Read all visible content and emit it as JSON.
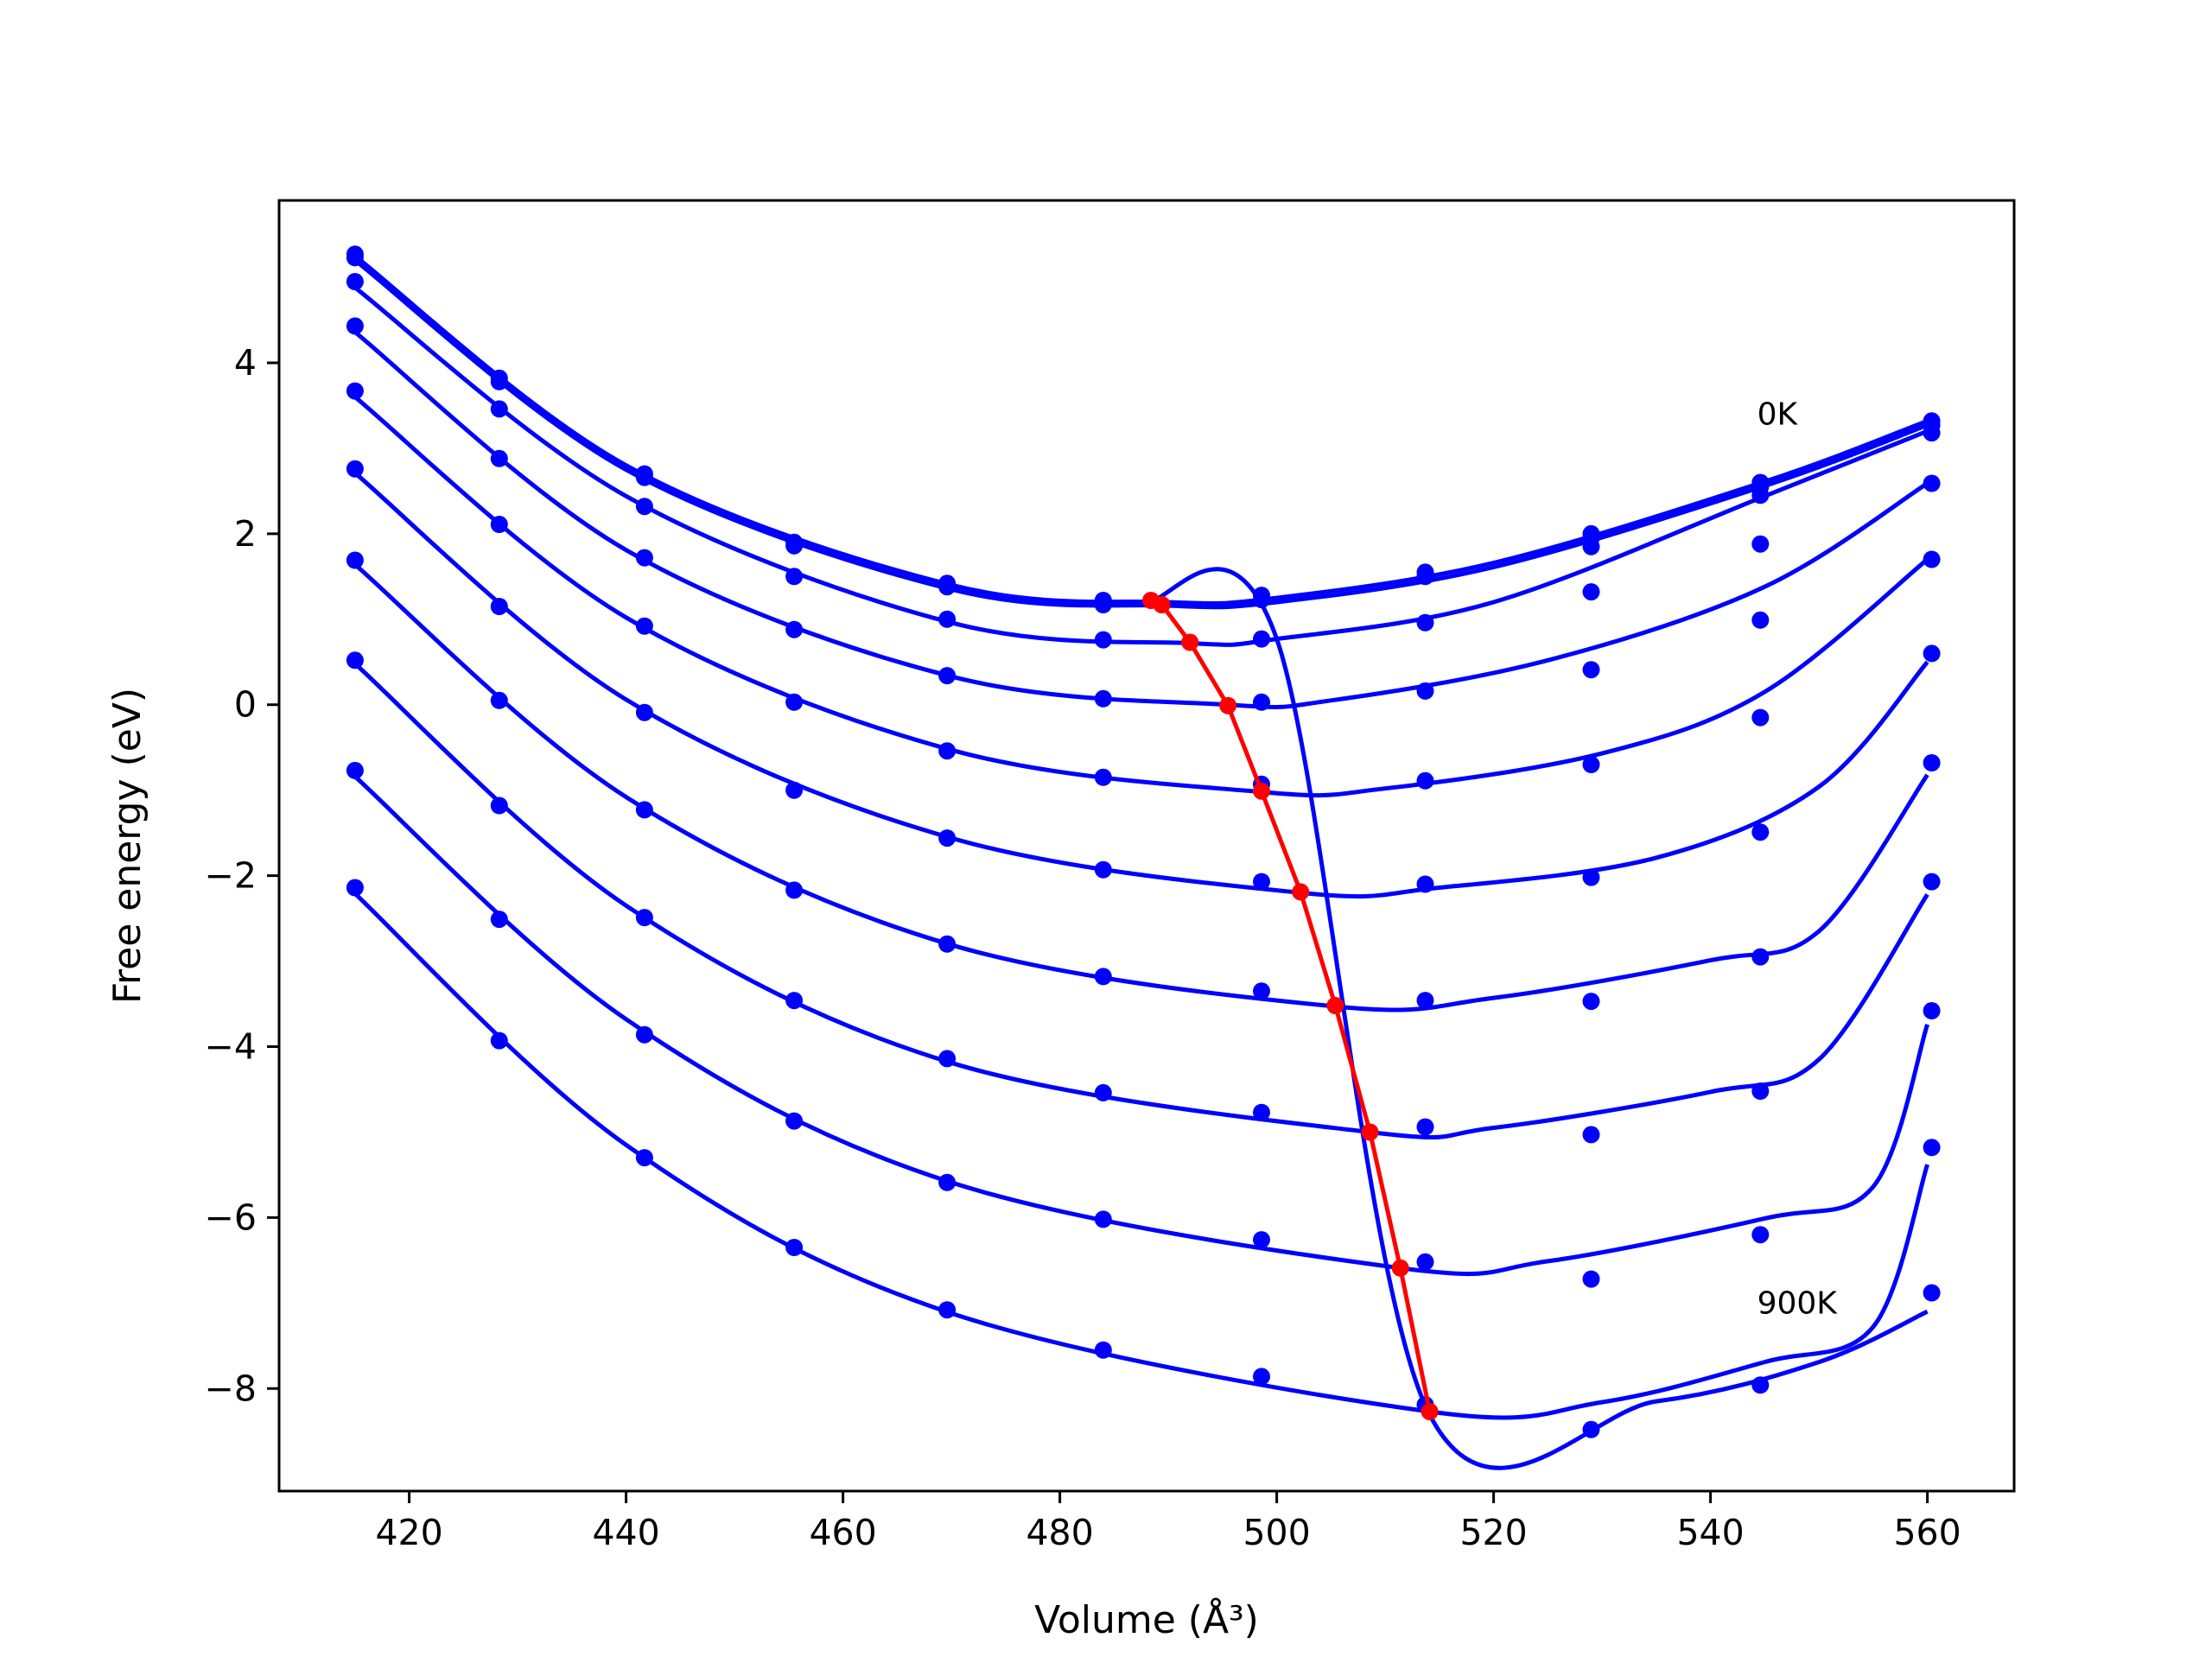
{
  "chart_data": {
    "type": "scatter",
    "title": "",
    "xlabel": "Volume (Å³)",
    "ylabel": "Free energy (eV)",
    "xlim": [
      408,
      568
    ],
    "ylim": [
      -9.2,
      5.9
    ],
    "grid": false,
    "legend": "none",
    "x_ticks": [
      420,
      440,
      460,
      480,
      500,
      520,
      540,
      560
    ],
    "x_tick_labels": [
      "420",
      "440",
      "460",
      "480",
      "500",
      "520",
      "540",
      "560"
    ],
    "y_ticks": [
      4,
      2,
      0,
      -2,
      -4,
      -6,
      -8
    ],
    "y_tick_labels": [
      "4",
      "2",
      "0",
      "−2",
      "−4",
      "−6",
      "−8"
    ],
    "volumes": [
      415.0,
      428.3,
      441.7,
      455.5,
      469.6,
      484.0,
      498.6,
      513.7,
      529.0,
      544.6,
      560.4
    ],
    "series": [
      {
        "points": [
          5.27,
          3.82,
          2.7,
          1.9,
          1.42,
          1.22,
          1.28,
          1.55,
          2.0,
          2.6,
          3.32
        ],
        "fit": [
          [
            415,
            5.25
          ],
          [
            440,
            2.8
          ],
          [
            470,
            1.4
          ],
          [
            490,
            1.2
          ],
          [
            500,
            1.25
          ],
          [
            520,
            1.66
          ],
          [
            545,
            2.61
          ],
          [
            560,
            3.32
          ]
        ]
      },
      {
        "points": [
          5.23,
          3.78,
          2.66,
          1.86,
          1.38,
          1.17,
          1.23,
          1.5,
          1.95,
          2.55,
          3.27
        ],
        "fit": [
          [
            415,
            5.2
          ],
          [
            440,
            2.75
          ],
          [
            470,
            1.35
          ],
          [
            490,
            1.16
          ],
          [
            500,
            1.2
          ],
          [
            520,
            1.61
          ],
          [
            545,
            2.56
          ],
          [
            560,
            3.27
          ]
        ]
      },
      {
        "points": [
          4.95,
          3.46,
          2.32,
          1.5,
          1.0,
          0.76,
          0.77,
          0.96,
          1.85,
          2.45,
          3.18
        ],
        "fit": [
          [
            415,
            4.88
          ],
          [
            440,
            2.44
          ],
          [
            470,
            0.96
          ],
          [
            492,
            0.72
          ],
          [
            500,
            0.77
          ],
          [
            520,
            1.2
          ],
          [
            545,
            2.44
          ],
          [
            560,
            3.2
          ]
        ]
      },
      {
        "points": [
          4.43,
          2.88,
          1.72,
          0.88,
          0.34,
          0.07,
          0.03,
          0.16,
          1.32,
          1.88,
          2.59
        ],
        "fit": [
          [
            415,
            4.36
          ],
          [
            440,
            1.81
          ],
          [
            470,
            0.33
          ],
          [
            495.5,
            0.0
          ],
          [
            505,
            0.05
          ],
          [
            525,
            0.52
          ],
          [
            545,
            1.38
          ],
          [
            560,
            2.59
          ]
        ]
      },
      {
        "points": [
          3.67,
          2.11,
          0.92,
          0.03,
          -0.54,
          -0.85,
          -0.93,
          -0.89,
          0.41,
          0.99,
          1.7
        ],
        "fit": [
          [
            415,
            3.6
          ],
          [
            440,
            1.02
          ],
          [
            470,
            -0.53
          ],
          [
            498.6,
            -1.02
          ],
          [
            510,
            -0.98
          ],
          [
            530,
            -0.57
          ],
          [
            545,
            0.15
          ],
          [
            560,
            1.7
          ]
        ]
      },
      {
        "points": [
          2.76,
          1.15,
          -0.09,
          -1.0,
          -1.56,
          -1.93,
          -2.07,
          -2.1,
          -0.7,
          -0.15,
          0.6
        ],
        "fit": [
          [
            415,
            2.71
          ],
          [
            440,
            0.06
          ],
          [
            470,
            -1.56
          ],
          [
            502.2,
            -2.2
          ],
          [
            515,
            -2.14
          ],
          [
            535,
            -1.79
          ],
          [
            550,
            -0.96
          ],
          [
            560,
            0.5
          ]
        ]
      },
      {
        "points": [
          1.69,
          0.05,
          -1.23,
          -2.17,
          -2.8,
          -3.18,
          -3.35,
          -3.46,
          -2.02,
          -1.49,
          -0.68
        ],
        "fit": [
          [
            415,
            1.64
          ],
          [
            440,
            -1.08
          ],
          [
            470,
            -2.81
          ],
          [
            505.4,
            -3.53
          ],
          [
            520,
            -3.43
          ],
          [
            540,
            -2.99
          ],
          [
            550,
            -2.65
          ],
          [
            560,
            -0.82
          ]
        ]
      },
      {
        "points": [
          0.52,
          -1.18,
          -2.49,
          -3.46,
          -4.14,
          -4.54,
          -4.77,
          -4.94,
          -3.47,
          -2.95,
          -2.07
        ],
        "fit": [
          [
            415,
            0.48
          ],
          [
            440,
            -2.35
          ],
          [
            470,
            -4.19
          ],
          [
            508.6,
            -5.0
          ],
          [
            520,
            -4.95
          ],
          [
            540,
            -4.53
          ],
          [
            550,
            -4.15
          ],
          [
            560,
            -2.22
          ]
        ]
      },
      {
        "points": [
          -0.77,
          -2.51,
          -3.86,
          -4.87,
          -5.59,
          -6.02,
          -6.26,
          -6.52,
          -5.03,
          -4.52,
          -3.58
        ],
        "fit": [
          [
            415,
            -0.84
          ],
          [
            440,
            -3.68
          ],
          [
            470,
            -5.59
          ],
          [
            511.4,
            -6.59
          ],
          [
            525,
            -6.51
          ],
          [
            545,
            -6.01
          ],
          [
            555,
            -5.64
          ],
          [
            560,
            -3.74
          ]
        ]
      },
      {
        "points": [
          -2.14,
          -3.93,
          -5.3,
          -6.35,
          -7.08,
          -7.55,
          -7.86,
          -8.19,
          -6.72,
          -6.2,
          -5.18
        ],
        "fit": [
          [
            415,
            -2.21
          ],
          [
            440,
            -5.15
          ],
          [
            470,
            -7.12
          ],
          [
            514.1,
            -8.27
          ],
          [
            530,
            -8.16
          ],
          [
            545,
            -7.69
          ],
          [
            555,
            -7.28
          ],
          [
            560,
            -5.38
          ]
        ]
      },
      {
        "points": [
          null,
          null,
          null,
          null,
          null,
          null,
          null,
          null,
          -8.48,
          -7.96,
          -6.88
        ],
        "fit": [
          [
            488,
            1.21
          ],
          [
            500,
            0.77
          ],
          [
            514,
            -8.28
          ],
          [
            535,
            -8.15
          ],
          [
            550,
            -7.69
          ],
          [
            560,
            -7.1
          ]
        ]
      }
    ],
    "minimum_line": {
      "x": [
        488.4,
        489.4,
        492.0,
        495.5,
        498.6,
        502.2,
        505.4,
        508.6,
        511.4,
        514.1
      ],
      "y": [
        1.22,
        1.17,
        0.73,
        -0.01,
        -1.01,
        -2.19,
        -3.52,
        -5.0,
        -6.59,
        -8.27
      ],
      "color": "#ff0000"
    },
    "series_color": "#0000ff",
    "annotations": [
      {
        "text": "0K",
        "x": 544.3,
        "y": 3.4
      },
      {
        "text": "900K",
        "x": 544.3,
        "y": -7.0
      }
    ]
  }
}
